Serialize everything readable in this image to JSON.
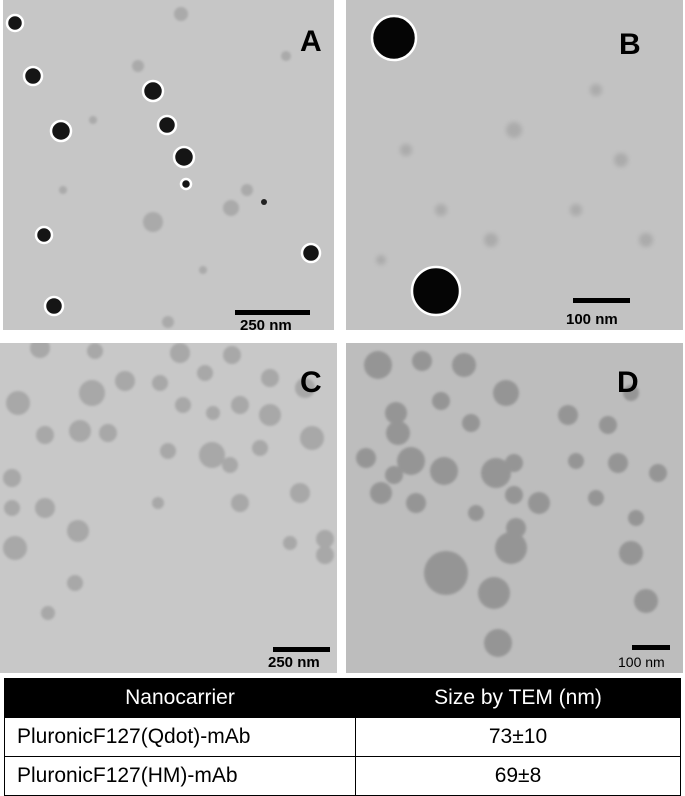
{
  "panels": {
    "A": {
      "letter": "A",
      "scale_label": "250 nm"
    },
    "B": {
      "letter": "B",
      "scale_label": "100 nm"
    },
    "C": {
      "letter": "C",
      "scale_label": "250 nm"
    },
    "D": {
      "letter": "D",
      "scale_label": "100 nm"
    }
  },
  "table": {
    "headers": [
      "Nanocarrier",
      "Size by TEM (nm)"
    ],
    "rows": [
      {
        "name": "PluronicF127(Qdot)-mAb",
        "size": "73±10"
      },
      {
        "name": "PluronicF127(HM)-mAb",
        "size": "69±8"
      }
    ]
  }
}
